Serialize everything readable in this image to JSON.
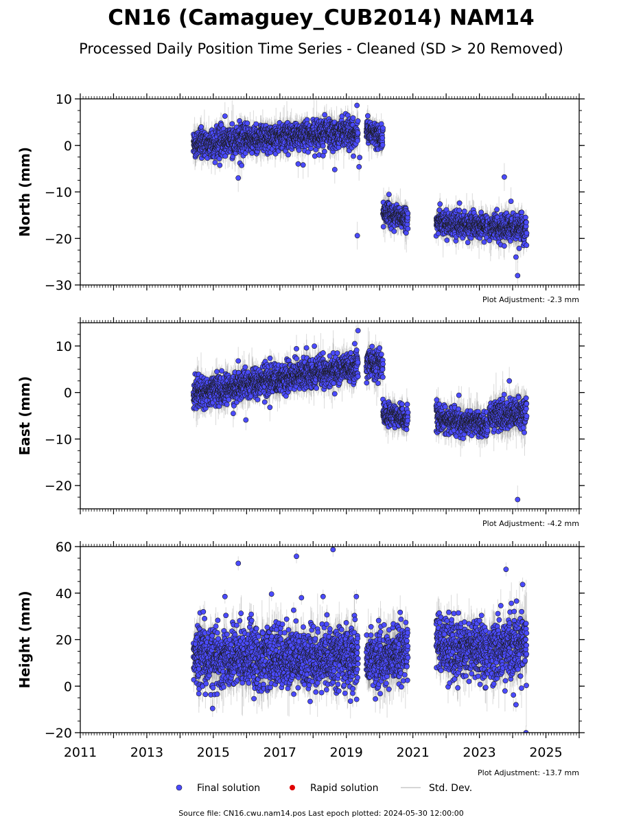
{
  "figure": {
    "title": "CN16 (Camaguey_CUB2014) NAM14",
    "subtitle": "Processed Daily Position Time Series - Cleaned (SD > 20 Removed)",
    "source_text": "Source file: CN16.cwu.nam14.pos  Last epoch plotted: 2024-05-30 12:00:00"
  },
  "legend": {
    "final": "Final solution",
    "rapid": "Rapid solution",
    "std": "Std. Dev."
  },
  "colors": {
    "final": "#4b4bff",
    "final_edge": "#1a1a1a",
    "rapid": "#e00000",
    "std": "#c8c8c8"
  },
  "chart_data": [
    {
      "type": "scatter",
      "ylabel": "North (mm)",
      "ylim": [
        -30,
        10
      ],
      "yticks": [
        -30,
        -20,
        -10,
        0,
        10
      ],
      "xlim": [
        2011,
        2026
      ],
      "adjustment": "Plot Adjustment: -2.3 mm",
      "series": [
        {
          "name": "Final solution",
          "segments": [
            {
              "range": [
                2014.4,
                2016.0
              ],
              "mean": [
                0.3,
                1.2
              ],
              "noise": 1.5,
              "std": 2.0
            },
            {
              "range": [
                2016.0,
                2018.0
              ],
              "mean": [
                1.2,
                2.4
              ],
              "noise": 1.4,
              "std": 1.9
            },
            {
              "range": [
                2018.0,
                2019.35
              ],
              "mean": [
                2.4,
                2.8
              ],
              "noise": 1.5,
              "std": 2.0
            },
            {
              "range": [
                2019.6,
                2020.1
              ],
              "mean": [
                3.5,
                1.5
              ],
              "noise": 1.2,
              "std": 1.8
            },
            {
              "range": [
                2020.1,
                2020.85
              ],
              "mean": [
                -14.5,
                -15.8
              ],
              "noise": 1.2,
              "std": 1.8
            },
            {
              "range": [
                2021.7,
                2023.25
              ],
              "mean": [
                -16.5,
                -17.5
              ],
              "noise": 1.2,
              "std": 1.9
            },
            {
              "range": [
                2023.3,
                2024.42
              ],
              "mean": [
                -17.5,
                -18.0
              ],
              "noise": 1.4,
              "std": 2.2
            }
          ],
          "outliers": [
            [
              2015.35,
              6.3
            ],
            [
              2015.75,
              -7.0
            ],
            [
              2015.8,
              -3.8
            ],
            [
              2015.85,
              -4.3
            ],
            [
              2017.55,
              -4.0
            ],
            [
              2017.7,
              -4.2
            ],
            [
              2018.3,
              -2.2
            ],
            [
              2018.65,
              -5.2
            ],
            [
              2019.32,
              8.6
            ],
            [
              2019.33,
              -19.4
            ],
            [
              2019.38,
              -4.6
            ],
            [
              2019.4,
              -2.6
            ],
            [
              2023.75,
              -6.8
            ],
            [
              2023.95,
              -12.0
            ],
            [
              2024.1,
              -24.0
            ],
            [
              2024.15,
              -28.0
            ]
          ]
        }
      ]
    },
    {
      "type": "scatter",
      "ylabel": "East (mm)",
      "ylim": [
        -25,
        15
      ],
      "yticks": [
        -20,
        -10,
        0,
        10
      ],
      "xlim": [
        2011,
        2026
      ],
      "adjustment": "Plot Adjustment: -4.2 mm",
      "series": [
        {
          "name": "Final solution",
          "segments": [
            {
              "range": [
                2014.4,
                2016.0
              ],
              "mean": [
                -0.5,
                1.8
              ],
              "noise": 1.6,
              "std": 2.2
            },
            {
              "range": [
                2016.0,
                2018.0
              ],
              "mean": [
                1.8,
                4.2
              ],
              "noise": 1.5,
              "std": 2.0
            },
            {
              "range": [
                2018.0,
                2019.35
              ],
              "mean": [
                4.2,
                5.5
              ],
              "noise": 1.5,
              "std": 2.0
            },
            {
              "range": [
                2019.6,
                2020.1
              ],
              "mean": [
                6.5,
                6.0
              ],
              "noise": 1.5,
              "std": 2.0
            },
            {
              "range": [
                2020.1,
                2020.85
              ],
              "mean": [
                -4.5,
                -5.5
              ],
              "noise": 1.3,
              "std": 1.9
            },
            {
              "range": [
                2021.7,
                2023.25
              ],
              "mean": [
                -5.5,
                -7.0
              ],
              "noise": 1.3,
              "std": 2.0
            },
            {
              "range": [
                2023.3,
                2024.42
              ],
              "mean": [
                -5.0,
                -4.5
              ],
              "noise": 1.5,
              "std": 2.4
            }
          ],
          "outliers": [
            [
              2015.6,
              -4.5
            ],
            [
              2015.75,
              6.8
            ],
            [
              2016.7,
              -3.2
            ],
            [
              2017.5,
              9.4
            ],
            [
              2017.8,
              9.6
            ],
            [
              2018.3,
              8.5
            ],
            [
              2019.25,
              10.5
            ],
            [
              2019.35,
              13.3
            ],
            [
              2019.95,
              2.0
            ],
            [
              2023.9,
              2.5
            ],
            [
              2024.15,
              -23.0
            ],
            [
              2024.35,
              -8.6
            ]
          ]
        }
      ]
    },
    {
      "type": "scatter",
      "ylabel": "Height (mm)",
      "ylim": [
        -20,
        60
      ],
      "yticks": [
        -20,
        0,
        20,
        40,
        60
      ],
      "xlim": [
        2011,
        2026
      ],
      "xticks": [
        2011,
        2013,
        2015,
        2017,
        2019,
        2021,
        2023,
        2025
      ],
      "xticklabels": [
        "2011",
        "2013",
        "2015",
        "2017",
        "2019",
        "2021",
        "2023",
        "2025"
      ],
      "adjustment": "Plot Adjustment: -13.7 mm",
      "series": [
        {
          "name": "Final solution",
          "segments": [
            {
              "range": [
                2014.4,
                2019.35
              ],
              "mean": [
                12.0,
                12.0
              ],
              "noise": 6.5,
              "std": 6.0
            },
            {
              "range": [
                2019.6,
                2020.85
              ],
              "mean": [
                10.0,
                16.0
              ],
              "noise": 6.0,
              "std": 6.0
            },
            {
              "range": [
                2021.7,
                2023.25
              ],
              "mean": [
                18.0,
                15.0
              ],
              "noise": 6.0,
              "std": 5.5
            },
            {
              "range": [
                2023.3,
                2024.42
              ],
              "mean": [
                16.0,
                18.0
              ],
              "noise": 7.0,
              "std": 6.5
            }
          ],
          "outliers": [
            [
              2014.6,
              31.5
            ],
            [
              2014.7,
              32.0
            ],
            [
              2015.35,
              38.5
            ],
            [
              2015.75,
              52.8
            ],
            [
              2016.75,
              39.6
            ],
            [
              2017.5,
              55.8
            ],
            [
              2017.65,
              38.0
            ],
            [
              2018.3,
              38.5
            ],
            [
              2018.6,
              58.7
            ],
            [
              2019.3,
              38.5
            ],
            [
              2023.8,
              50.2
            ],
            [
              2024.3,
              43.7
            ],
            [
              2024.1,
              -8.0
            ],
            [
              2024.4,
              -20.0
            ]
          ]
        },
        {
          "name": "Rapid solution",
          "segments": [],
          "outliers": []
        }
      ]
    }
  ]
}
